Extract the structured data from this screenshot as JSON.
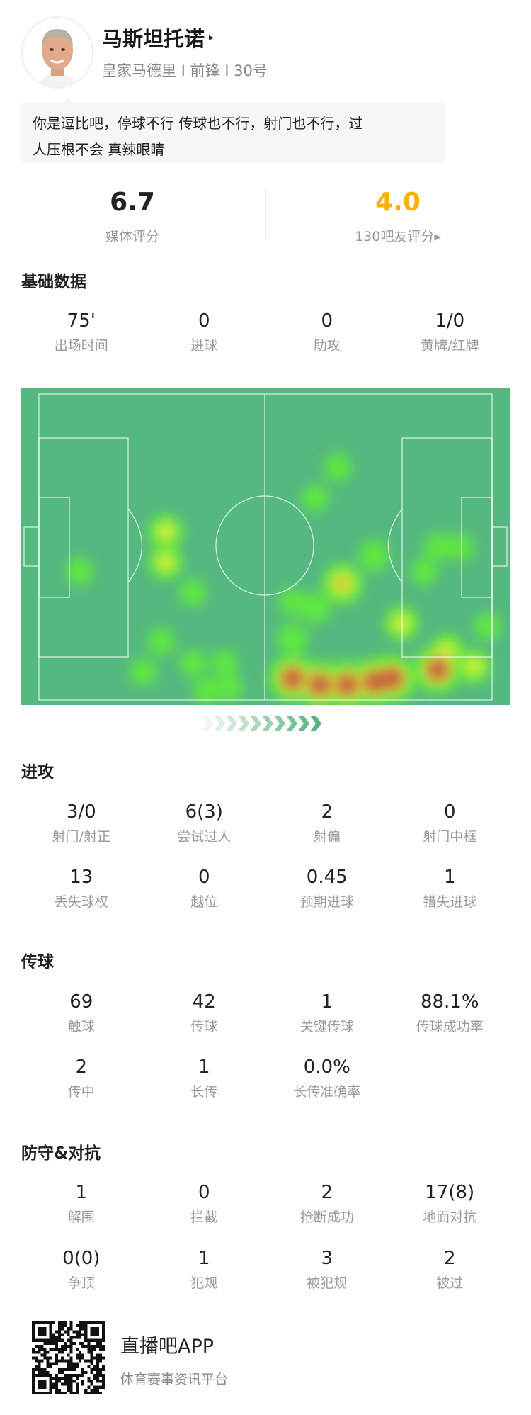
{
  "player": {
    "name": "马斯坦托诺",
    "name_arrow": "▸",
    "subtitle": "皇家马德里 I 前锋 I 30号",
    "comment_line1": "你是逗比吧，停球不行 传球也不行，射门也不行，过",
    "comment_line2": "人压根不会 真辣眼睛"
  },
  "ratings": {
    "media": {
      "value": "6.7",
      "label": "媒体评分"
    },
    "fans": {
      "value": "4.0",
      "label": "130吧友评分▸",
      "color": "#f5b200"
    }
  },
  "basic": {
    "title": "基础数据",
    "stats": [
      {
        "value": "75'",
        "label": "出场时间"
      },
      {
        "value": "0",
        "label": "进球"
      },
      {
        "value": "0",
        "label": "助攻"
      },
      {
        "value": "1/0",
        "label": "黄牌/红牌"
      }
    ]
  },
  "heatmap": {
    "colors": {
      "pitch": "#55b880",
      "low": "#5ee840",
      "mid": "#d8ee3a",
      "high": "#c8543f"
    },
    "attack_direction": "right",
    "points_pitch_percent": [
      [
        66,
        24,
        1
      ],
      [
        61,
        34,
        1
      ],
      [
        28,
        45,
        2
      ],
      [
        28,
        55,
        2
      ],
      [
        9,
        58,
        1
      ],
      [
        34,
        65,
        1
      ],
      [
        67,
        62,
        3
      ],
      [
        74,
        53,
        1.5
      ],
      [
        56,
        68,
        1
      ],
      [
        61,
        70,
        1.5
      ],
      [
        88,
        50,
        1
      ],
      [
        93,
        50,
        1
      ],
      [
        85,
        58,
        1
      ],
      [
        80,
        75,
        2
      ],
      [
        99,
        76,
        1
      ],
      [
        27,
        81,
        1
      ],
      [
        23,
        91,
        1
      ],
      [
        34,
        88,
        1
      ],
      [
        41,
        88,
        1
      ],
      [
        37,
        97,
        1
      ],
      [
        42,
        96,
        1
      ],
      [
        56,
        80,
        1.5
      ],
      [
        56,
        93,
        4
      ],
      [
        62,
        95,
        4
      ],
      [
        68,
        95,
        4
      ],
      [
        74,
        94,
        4
      ],
      [
        78,
        93,
        4
      ],
      [
        88,
        90,
        4
      ],
      [
        96,
        89,
        2
      ],
      [
        90,
        84,
        2
      ]
    ]
  },
  "attack": {
    "title": "进攻",
    "rows": [
      [
        {
          "value": "3/0",
          "label": "射门/射正"
        },
        {
          "value": "6(3)",
          "label": "尝试过人"
        },
        {
          "value": "2",
          "label": "射偏"
        },
        {
          "value": "0",
          "label": "射门中框"
        }
      ],
      [
        {
          "value": "13",
          "label": "丢失球权"
        },
        {
          "value": "0",
          "label": "越位"
        },
        {
          "value": "0.45",
          "label": "预期进球"
        },
        {
          "value": "1",
          "label": "错失进球"
        }
      ]
    ]
  },
  "passing": {
    "title": "传球",
    "rows": [
      [
        {
          "value": "69",
          "label": "触球"
        },
        {
          "value": "42",
          "label": "传球"
        },
        {
          "value": "1",
          "label": "关键传球"
        },
        {
          "value": "88.1%",
          "label": "传球成功率"
        }
      ],
      [
        {
          "value": "2",
          "label": "传中"
        },
        {
          "value": "1",
          "label": "长传"
        },
        {
          "value": "0.0%",
          "label": "长传准确率"
        }
      ]
    ]
  },
  "defense": {
    "title": "防守&对抗",
    "rows": [
      [
        {
          "value": "1",
          "label": "解围"
        },
        {
          "value": "0",
          "label": "拦截"
        },
        {
          "value": "2",
          "label": "抢断成功"
        },
        {
          "value": "17(8)",
          "label": "地面对抗"
        }
      ],
      [
        {
          "value": "0(0)",
          "label": "争顶"
        },
        {
          "value": "1",
          "label": "犯规"
        },
        {
          "value": "3",
          "label": "被犯规"
        },
        {
          "value": "2",
          "label": "被过"
        }
      ]
    ]
  },
  "footer": {
    "app_name": "直播吧APP",
    "app_desc": "体育赛事资讯平台"
  }
}
